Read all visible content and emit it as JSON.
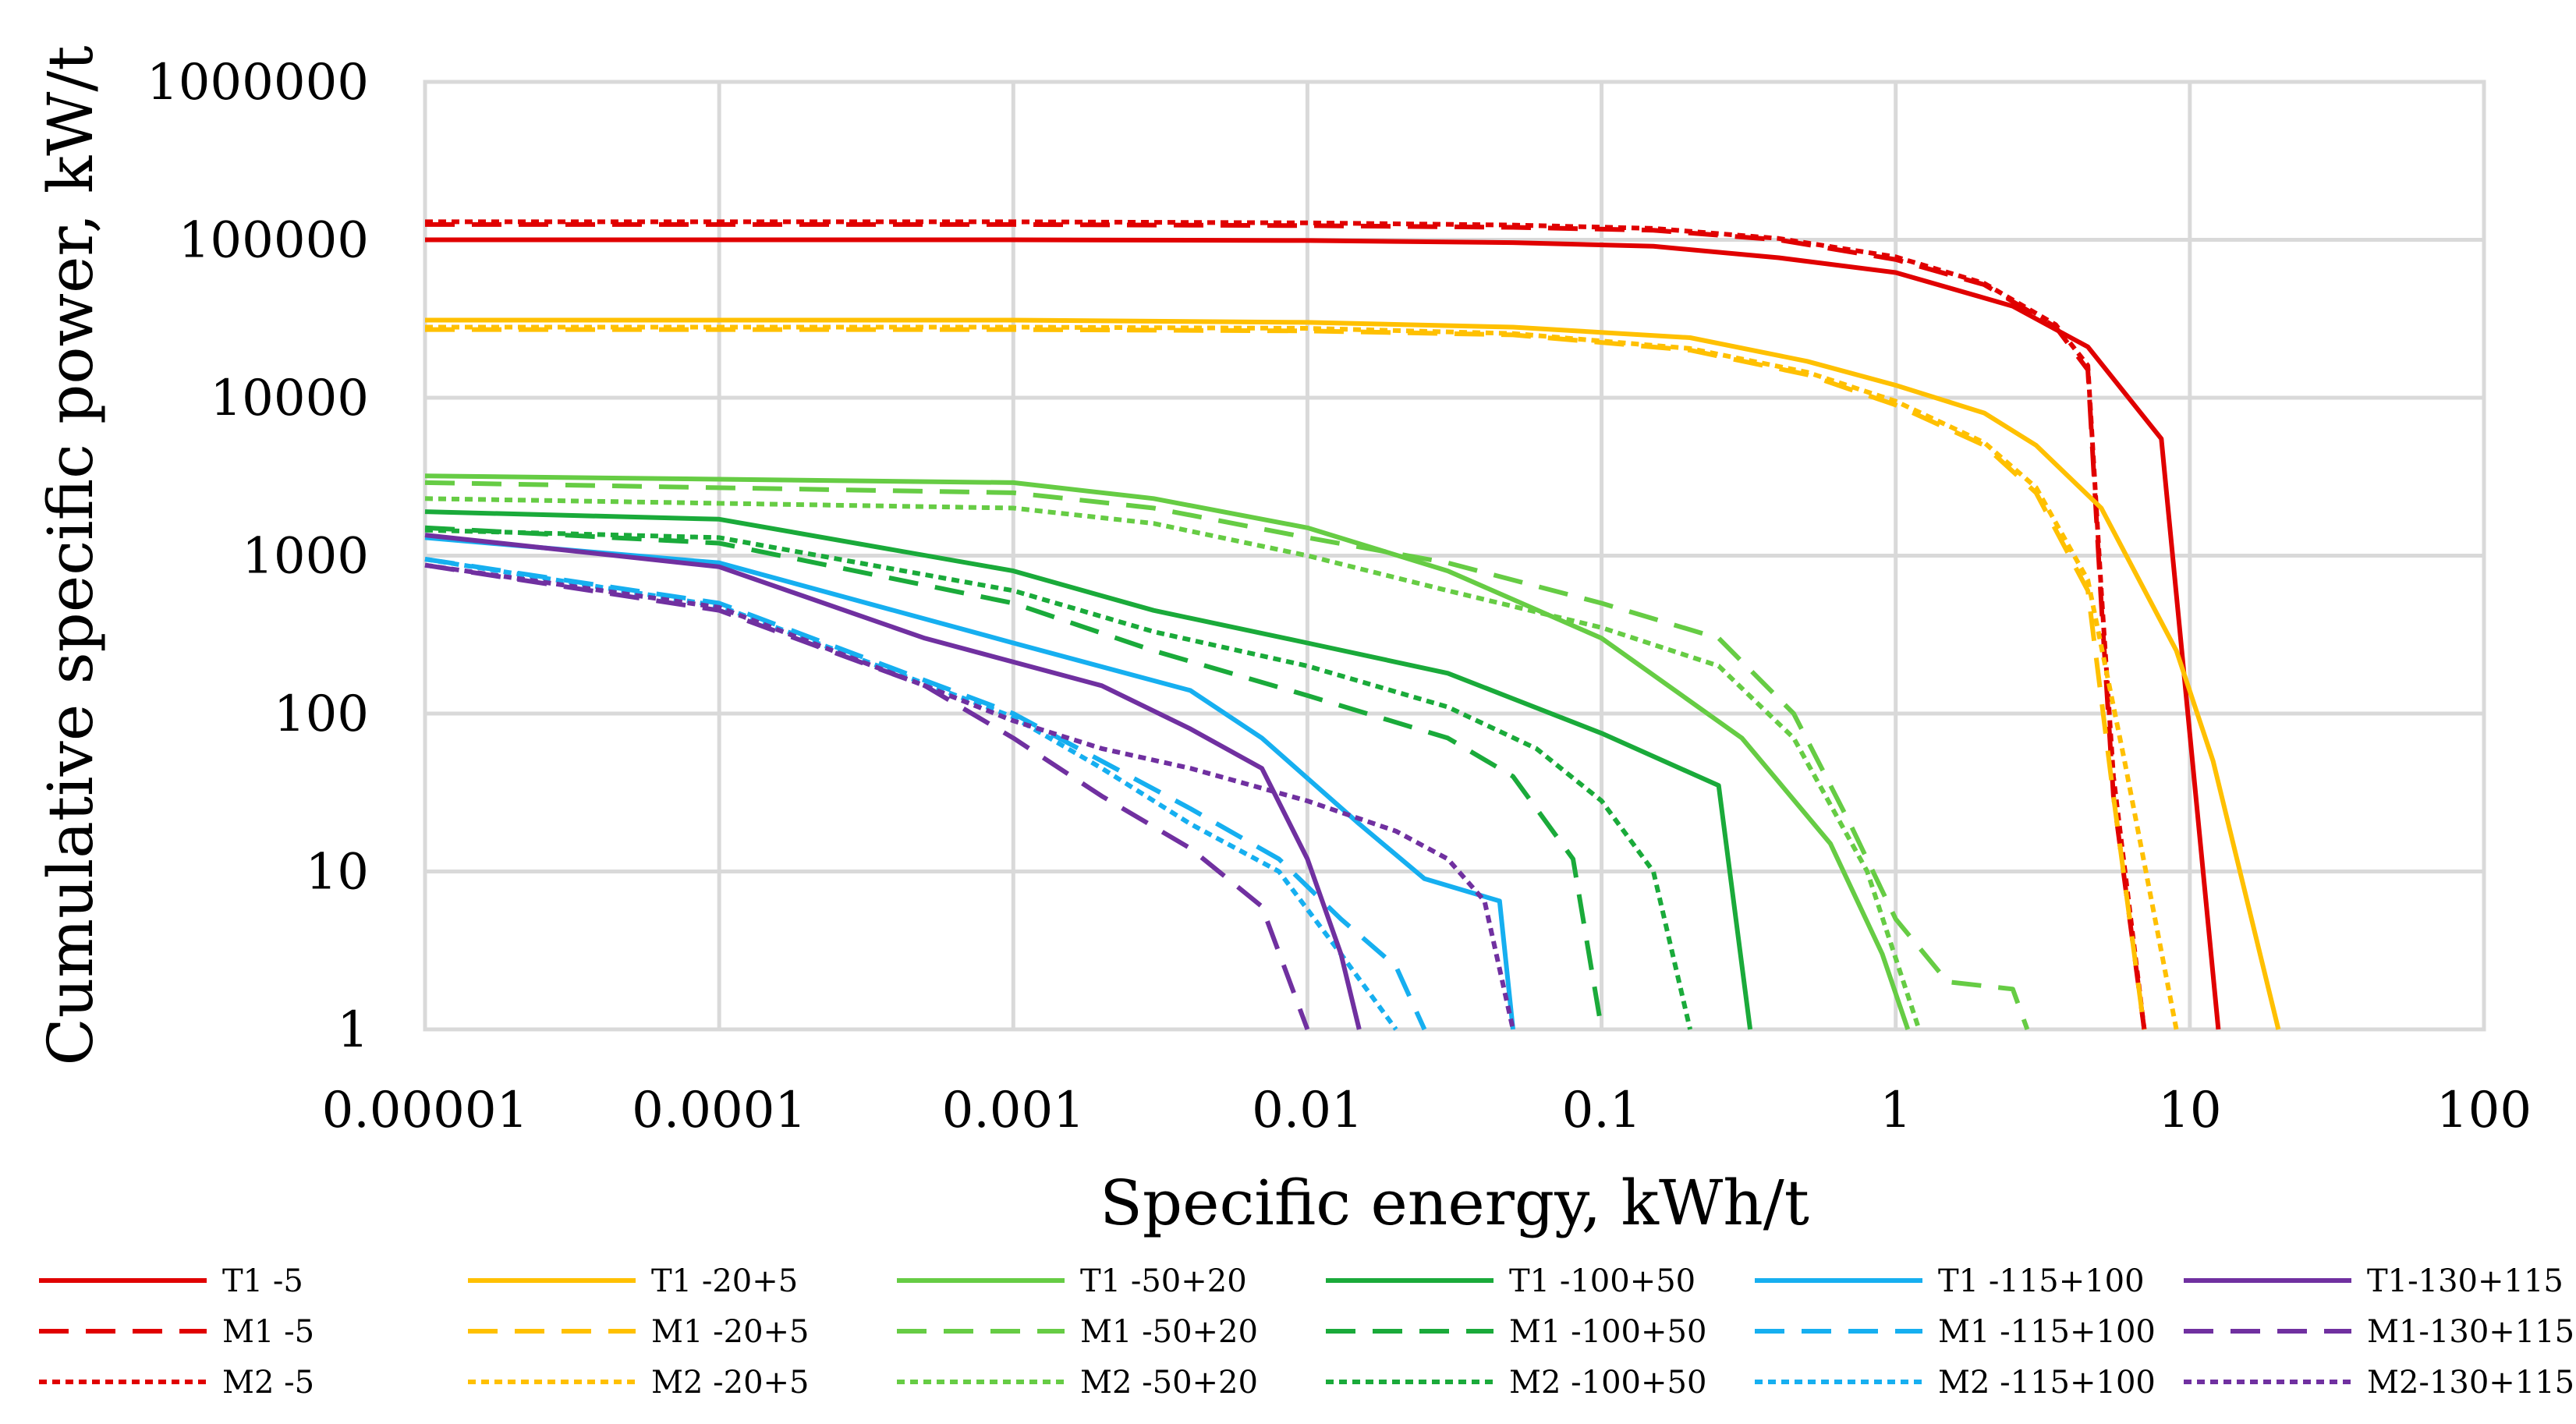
{
  "chart_data": {
    "type": "line",
    "title": "",
    "xlabel": "Specific energy, kWh/t",
    "ylabel": "Cumulative specific power, kW/t",
    "xscale": "log",
    "yscale": "log",
    "xlim": [
      1e-05,
      100
    ],
    "ylim": [
      1,
      1000000
    ],
    "x_ticks": [
      1e-05,
      0.0001,
      0.001,
      0.01,
      0.1,
      1,
      10,
      100
    ],
    "x_tick_labels": [
      "0.00001",
      "0.0001",
      "0.001",
      "0.01",
      "0.1",
      "1",
      "10",
      "100"
    ],
    "y_ticks": [
      1,
      10,
      100,
      1000,
      10000,
      100000,
      1000000
    ],
    "y_tick_labels": [
      "1",
      "10",
      "100",
      "1000",
      "10000",
      "100000",
      "1000000"
    ],
    "grid": true,
    "legend_position": "bottom",
    "colors": {
      "red": "#e00000",
      "orange": "#ffc000",
      "lightgreen": "#66cc44",
      "darkgreen": "#1aaa3a",
      "blue": "#16aff0",
      "purple": "#7030a0"
    },
    "series": [
      {
        "name": "T1 -5",
        "color": "red",
        "style": "solid",
        "x": [
          1e-05,
          0.001,
          0.01,
          0.05,
          0.15,
          0.4,
          1,
          2.5,
          4.5,
          8,
          12.5
        ],
        "y": [
          100000,
          100000,
          99000,
          96000,
          91000,
          77000,
          62000,
          38000,
          21000,
          5500,
          1
        ]
      },
      {
        "name": "M1 -5",
        "color": "red",
        "style": "dash",
        "x": [
          1e-05,
          0.001,
          0.01,
          0.05,
          0.15,
          0.4,
          1,
          2,
          3.5,
          4.5,
          5,
          5.5,
          7
        ],
        "y": [
          125000,
          125000,
          123000,
          120000,
          115000,
          100000,
          75000,
          52000,
          28000,
          15000,
          500,
          30,
          1
        ]
      },
      {
        "name": "M2 -5",
        "color": "red",
        "style": "dot",
        "x": [
          1e-05,
          0.001,
          0.01,
          0.05,
          0.15,
          0.4,
          1,
          2,
          3.5,
          4.5,
          5,
          5.5,
          7
        ],
        "y": [
          130000,
          130000,
          128000,
          124000,
          118000,
          102000,
          78000,
          53000,
          29000,
          16000,
          600,
          40,
          1
        ]
      },
      {
        "name": "T1 -20+5",
        "color": "orange",
        "style": "solid",
        "x": [
          1e-05,
          0.001,
          0.01,
          0.05,
          0.2,
          0.5,
          1,
          2,
          3,
          5,
          9,
          12,
          20
        ],
        "y": [
          31000,
          31000,
          30000,
          28000,
          24000,
          17000,
          12000,
          8000,
          5000,
          2000,
          250,
          50,
          1
        ]
      },
      {
        "name": "M1 -20+5",
        "color": "orange",
        "style": "dash",
        "x": [
          1e-05,
          0.001,
          0.01,
          0.05,
          0.2,
          0.5,
          1,
          2,
          3,
          4.5,
          5.5,
          7
        ],
        "y": [
          27000,
          27000,
          26500,
          25000,
          20000,
          14000,
          9000,
          5000,
          2500,
          600,
          30,
          1
        ]
      },
      {
        "name": "M2 -20+5",
        "color": "orange",
        "style": "dot",
        "x": [
          1e-05,
          0.001,
          0.01,
          0.05,
          0.2,
          0.5,
          1,
          2,
          3,
          4.5,
          6,
          9
        ],
        "y": [
          28000,
          28000,
          27500,
          25500,
          20500,
          14500,
          9500,
          5200,
          2700,
          700,
          50,
          1
        ]
      },
      {
        "name": "T1 -50+20",
        "color": "lightgreen",
        "style": "solid",
        "x": [
          1e-05,
          0.001,
          0.003,
          0.01,
          0.03,
          0.1,
          0.3,
          0.6,
          0.9,
          1.1
        ],
        "y": [
          3200,
          2900,
          2300,
          1500,
          800,
          300,
          70,
          15,
          3,
          1
        ]
      },
      {
        "name": "M1 -50+20",
        "color": "lightgreen",
        "style": "dash",
        "x": [
          1e-05,
          0.001,
          0.003,
          0.01,
          0.03,
          0.1,
          0.25,
          0.45,
          0.7,
          1,
          1.5,
          2.5,
          2.8
        ],
        "y": [
          2900,
          2500,
          2000,
          1300,
          900,
          500,
          300,
          100,
          20,
          5,
          2,
          1.8,
          1
        ]
      },
      {
        "name": "M2 -50+20",
        "color": "lightgreen",
        "style": "dot",
        "x": [
          1e-05,
          0.001,
          0.003,
          0.01,
          0.03,
          0.1,
          0.25,
          0.45,
          0.8,
          1.2
        ],
        "y": [
          2300,
          2000,
          1600,
          1000,
          600,
          350,
          200,
          70,
          10,
          1
        ]
      },
      {
        "name": "T1 -100+50",
        "color": "darkgreen",
        "style": "solid",
        "x": [
          1e-05,
          0.0001,
          0.001,
          0.003,
          0.01,
          0.03,
          0.1,
          0.25,
          0.32
        ],
        "y": [
          1900,
          1700,
          800,
          450,
          280,
          180,
          75,
          35,
          1
        ]
      },
      {
        "name": "M1 -100+50",
        "color": "darkgreen",
        "style": "dash",
        "x": [
          1e-05,
          0.0001,
          0.001,
          0.003,
          0.01,
          0.03,
          0.05,
          0.08,
          0.1
        ],
        "y": [
          1500,
          1200,
          500,
          250,
          130,
          70,
          40,
          12,
          1
        ]
      },
      {
        "name": "M2 -100+50",
        "color": "darkgreen",
        "style": "dot",
        "x": [
          1e-05,
          0.0001,
          0.001,
          0.003,
          0.01,
          0.03,
          0.06,
          0.1,
          0.15,
          0.2
        ],
        "y": [
          1450,
          1300,
          600,
          330,
          200,
          110,
          60,
          28,
          10,
          1
        ]
      },
      {
        "name": "T1 -115+100",
        "color": "blue",
        "style": "solid",
        "x": [
          1e-05,
          0.0001,
          0.001,
          0.004,
          0.007,
          0.015,
          0.025,
          0.045,
          0.05
        ],
        "y": [
          1300,
          900,
          280,
          140,
          70,
          20,
          9,
          6.5,
          1
        ]
      },
      {
        "name": "M1 -115+100",
        "color": "blue",
        "style": "dash",
        "x": [
          1e-05,
          0.0001,
          0.001,
          0.002,
          0.004,
          0.008,
          0.013,
          0.02,
          0.025
        ],
        "y": [
          950,
          500,
          100,
          50,
          25,
          12,
          5,
          2.5,
          1
        ]
      },
      {
        "name": "M2 -115+100",
        "color": "blue",
        "style": "dot",
        "x": [
          1e-05,
          0.0001,
          0.001,
          0.002,
          0.004,
          0.008,
          0.013,
          0.02
        ],
        "y": [
          950,
          480,
          95,
          45,
          20,
          10,
          3,
          1
        ]
      },
      {
        "name": "T1-130+115",
        "color": "purple",
        "style": "solid",
        "x": [
          1e-05,
          0.0001,
          0.0005,
          0.002,
          0.004,
          0.007,
          0.01,
          0.013,
          0.015
        ],
        "y": [
          1350,
          850,
          300,
          150,
          80,
          45,
          12,
          3,
          1
        ]
      },
      {
        "name": "M1-130+115",
        "color": "purple",
        "style": "dash",
        "x": [
          1e-05,
          0.0001,
          0.0005,
          0.001,
          0.002,
          0.004,
          0.007,
          0.01
        ],
        "y": [
          870,
          450,
          150,
          70,
          30,
          14,
          6,
          1
        ]
      },
      {
        "name": "M2-130+115",
        "color": "purple",
        "style": "dot",
        "x": [
          1e-05,
          0.0001,
          0.0005,
          0.001,
          0.002,
          0.004,
          0.01,
          0.02,
          0.03,
          0.04,
          0.05
        ],
        "y": [
          870,
          470,
          150,
          90,
          60,
          45,
          28,
          18,
          12,
          6.5,
          1
        ]
      }
    ]
  }
}
